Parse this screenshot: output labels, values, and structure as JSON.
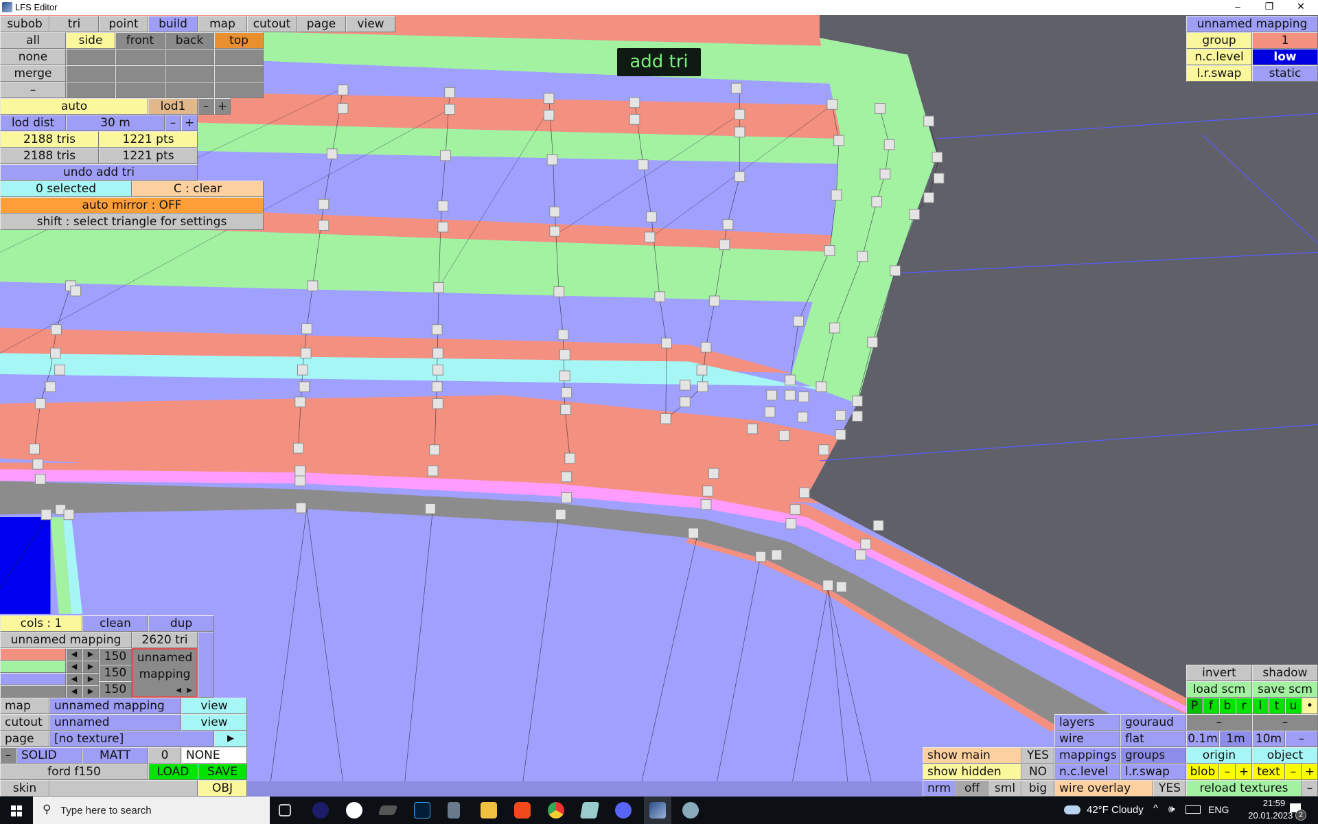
{
  "window": {
    "title": "LFS Editor",
    "minimize": "–",
    "maximize": "❐",
    "close": "✕"
  },
  "menu": {
    "tabs": [
      {
        "label": "subob"
      },
      {
        "label": "tri"
      },
      {
        "label": "point"
      },
      {
        "label": "build",
        "active": true
      },
      {
        "label": "map"
      },
      {
        "label": "cutout"
      },
      {
        "label": "page"
      },
      {
        "label": "view"
      }
    ]
  },
  "select_panel": {
    "views": [
      "all",
      "side",
      "front",
      "back",
      "top"
    ],
    "rows": [
      "none",
      "merge",
      "–"
    ],
    "auto": "auto",
    "lod": "lod1",
    "minus": "–",
    "plus": "+",
    "lod_dist_label": "lod dist",
    "lod_dist_value": "30 m",
    "tris1": "2188 tris",
    "pts1": "1221 pts",
    "tris2": "2188 tris",
    "pts2": "1221 pts",
    "undo": "undo add tri",
    "selected": "0 selected",
    "clear": "C : clear",
    "auto_mirror": "auto mirror : OFF",
    "shift_hint": "shift : select triangle for settings"
  },
  "mode_label": "add tri",
  "mapping_panel": {
    "title": "unnamed mapping",
    "group_label": "group",
    "group_value": "1",
    "nc_label": "n.c.level",
    "nc_value": "low",
    "lr_label": "l.r.swap",
    "lr_value": "static"
  },
  "colors_panel": {
    "cols": "cols : 1",
    "clean": "clean",
    "dup": "dup",
    "mapping": "unnamed mapping",
    "tri_count": "2620 tri",
    "swatches": [
      "#f49080",
      "#a2f2a2",
      "#9e9ef6",
      "#8a8a8a"
    ],
    "values": [
      "150",
      "150",
      "150"
    ],
    "left_arrow": "◀",
    "right_arrow": "▶",
    "preview_line1": "unnamed",
    "preview_line2": "mapping"
  },
  "material_panel": {
    "map_label": "map",
    "map_value": "unnamed mapping",
    "view": "view",
    "cutout_label": "cutout",
    "cutout_value": "unnamed",
    "page_label": "page",
    "page_value": "[no texture]",
    "page_arrow": "▶",
    "minus": "–",
    "solid": "SOLID",
    "matt": "MATT",
    "num": "0",
    "none": "NONE",
    "file": "ford f150",
    "load": "LOAD",
    "save": "SAVE",
    "skin_label": "skin",
    "skin_value": "",
    "obj": "OBJ"
  },
  "view_panel": {
    "invert": "invert",
    "shadow": "shadow",
    "load_scm": "load scm",
    "save_scm": "save scm",
    "views": [
      "P",
      "f",
      "b",
      "r",
      "l",
      "t",
      "u",
      "•"
    ],
    "dash": "–",
    "scales": [
      "0.1m",
      "1m",
      "10m",
      "–"
    ],
    "origin": "origin",
    "object": "object",
    "blob": "blob",
    "text": "text",
    "minus": "–",
    "plus": "+",
    "reload": "reload textures",
    "layers": "layers",
    "gouraud": "gouraud",
    "wire": "wire",
    "flat": "flat",
    "mappings": "mappings",
    "groups": "groups",
    "nclevel": "n.c.level",
    "lrswap": "l.r.swap",
    "show_main": "show main",
    "show_main_v": "YES",
    "show_hidden": "show hidden",
    "show_hidden_v": "NO",
    "sizes": [
      "nrm",
      "off",
      "sml",
      "big"
    ],
    "wire_overlay": "wire overlay",
    "wire_overlay_v": "YES"
  },
  "taskbar": {
    "search_placeholder": "Type here to search",
    "weather": "42°F  Cloudy",
    "lang": "ENG",
    "time": "21:59",
    "date": "20.01.2023 г.",
    "notif_count": "2"
  }
}
